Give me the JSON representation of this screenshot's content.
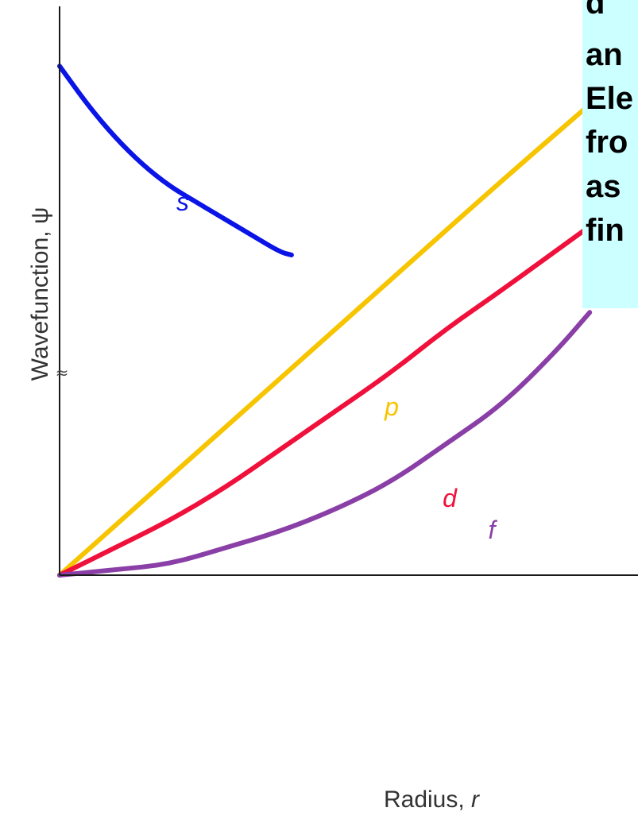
{
  "chart_data": {
    "type": "line",
    "xlabel_prefix": "Radius,",
    "xlabel_symbol": "r",
    "ylabel": "Wavefunction, ψ",
    "y_axis_break_symbol": "≈",
    "grid": false,
    "series": [
      {
        "name": "s",
        "color": "#0a14e6",
        "points": [
          [
            0.0,
            0.93
          ],
          [
            0.05,
            0.86
          ],
          [
            0.1,
            0.8
          ],
          [
            0.15,
            0.75
          ],
          [
            0.2,
            0.71
          ],
          [
            0.25,
            0.68
          ],
          [
            0.3,
            0.65
          ],
          [
            0.35,
            0.62
          ],
          [
            0.4,
            0.59
          ],
          [
            0.42,
            0.585
          ]
        ]
      },
      {
        "name": "p",
        "color": "#f7c400",
        "points": [
          [
            0.0,
            0.0
          ],
          [
            0.2,
            0.18
          ],
          [
            0.4,
            0.36
          ],
          [
            0.6,
            0.54
          ],
          [
            0.8,
            0.72
          ],
          [
            0.96,
            0.86
          ]
        ]
      },
      {
        "name": "d",
        "color": "#f0103c",
        "points": [
          [
            0.0,
            0.0
          ],
          [
            0.1,
            0.05
          ],
          [
            0.2,
            0.1
          ],
          [
            0.3,
            0.16
          ],
          [
            0.4,
            0.23
          ],
          [
            0.5,
            0.3
          ],
          [
            0.6,
            0.37
          ],
          [
            0.7,
            0.45
          ],
          [
            0.8,
            0.52
          ],
          [
            0.95,
            0.63
          ]
        ]
      },
      {
        "name": "f",
        "color": "#8a3fa6",
        "points": [
          [
            0.0,
            0.0
          ],
          [
            0.1,
            0.01
          ],
          [
            0.2,
            0.02
          ],
          [
            0.3,
            0.05
          ],
          [
            0.4,
            0.08
          ],
          [
            0.5,
            0.12
          ],
          [
            0.6,
            0.17
          ],
          [
            0.7,
            0.24
          ],
          [
            0.8,
            0.31
          ],
          [
            0.9,
            0.41
          ],
          [
            0.96,
            0.48
          ]
        ]
      }
    ]
  },
  "overlay_text": {
    "lines": [
      "d",
      "an",
      "Ele",
      "fro",
      "as",
      "fin"
    ]
  }
}
